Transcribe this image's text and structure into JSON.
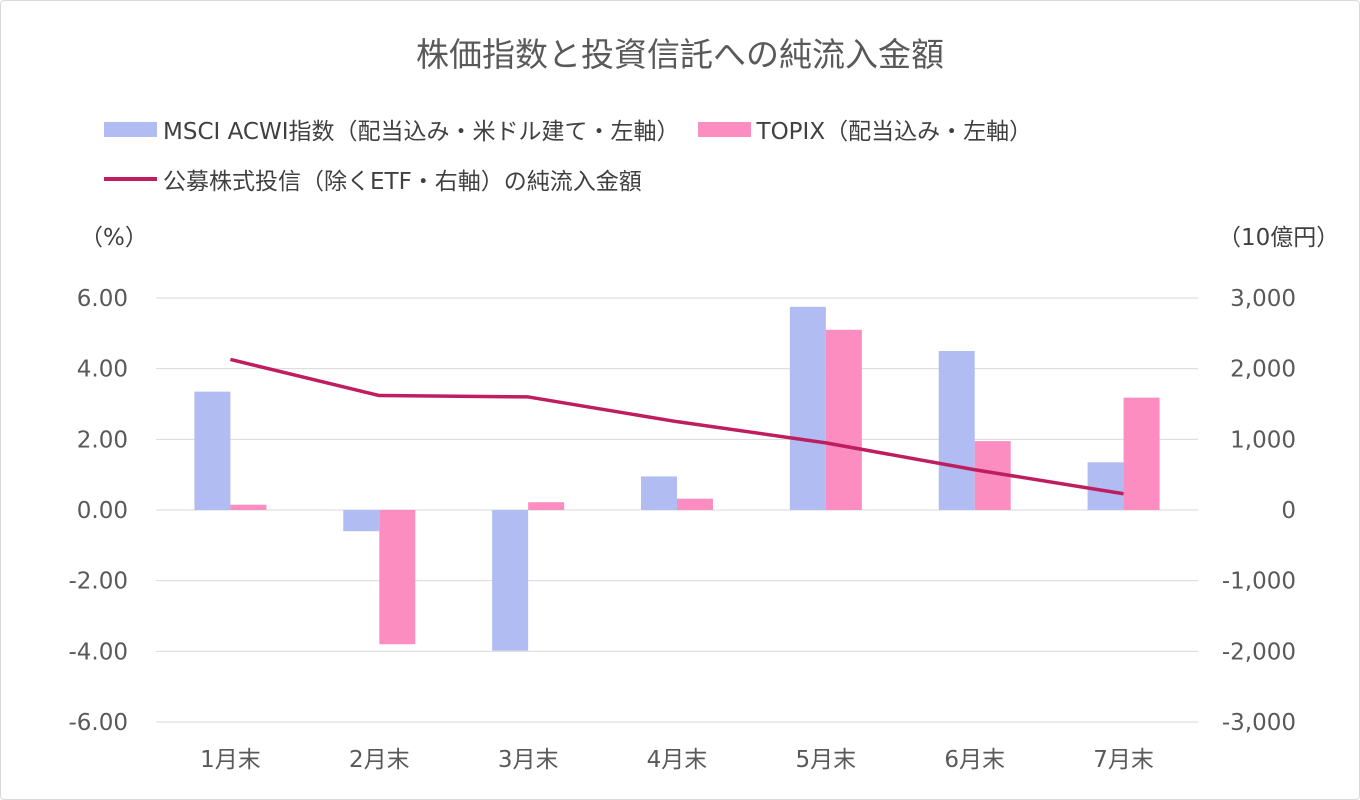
{
  "chart_data": {
    "type": "bar",
    "title": "株価指数と投資信託への純流入金額",
    "categories": [
      "1月末",
      "2月末",
      "3月末",
      "4月末",
      "5月末",
      "6月末",
      "7月末"
    ],
    "series": [
      {
        "name": "MSCI ACWI指数（配当込み・米ドル建て・左軸）",
        "type": "bar",
        "axis": "left",
        "color": "#b0bcf2",
        "values": [
          3.35,
          -0.6,
          -3.98,
          0.95,
          5.75,
          4.5,
          1.35
        ]
      },
      {
        "name": "TOPIX（配当込み・左軸）",
        "type": "bar",
        "axis": "left",
        "color": "#fc8dc1",
        "values": [
          0.15,
          -3.8,
          0.22,
          0.32,
          5.1,
          1.95,
          3.18
        ]
      },
      {
        "name": "公募株式投信（除くETF・右軸）の純流入金額",
        "type": "line",
        "axis": "right",
        "color": "#be1e5f",
        "values": [
          2130,
          1620,
          1600,
          1250,
          950,
          570,
          230
        ]
      }
    ],
    "y_left": {
      "label": "（%）",
      "ylim": [
        -6,
        6
      ],
      "ticks": [
        "6.00",
        "4.00",
        "2.00",
        "0.00",
        "-2.00",
        "-4.00",
        "-6.00"
      ]
    },
    "y_right": {
      "label": "（10億円）",
      "ylim": [
        -3000,
        3000
      ],
      "ticks": [
        "3,000",
        "2,000",
        "1,000",
        "0",
        "-1,000",
        "-2,000",
        "-3,000"
      ]
    },
    "grid": true,
    "legend": "top"
  }
}
